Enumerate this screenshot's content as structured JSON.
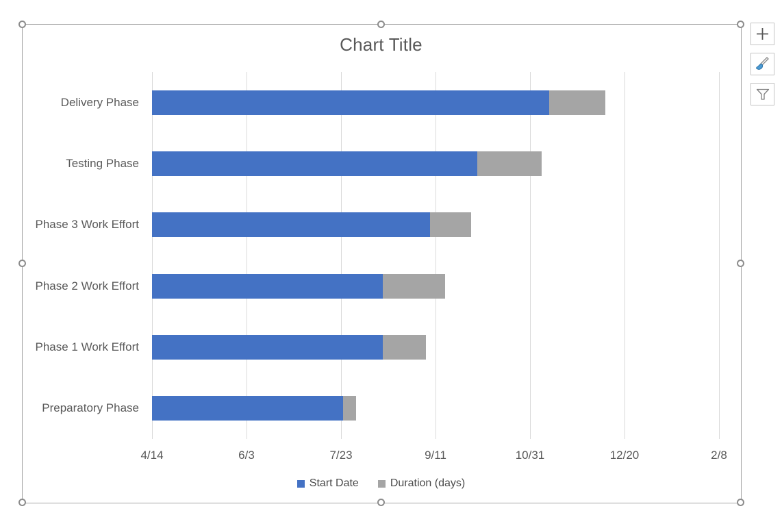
{
  "chart_title": "Chart Title",
  "chart_data": {
    "type": "bar",
    "subtype": "horizontal-stacked-gantt",
    "title": "Chart Title",
    "categories": [
      "Delivery Phase",
      "Testing Phase",
      "Phase 3 Work Effort",
      "Phase 2 Work Effort",
      "Phase 1 Work Effort",
      "Preparatory Phase"
    ],
    "series": [
      {
        "name": "Start Date",
        "color": "#4472C4",
        "role": "offset-from-axis-min",
        "values_days_from_axis_min": [
          210,
          172,
          147,
          122,
          122,
          101
        ],
        "start_date_estimates": [
          "11/10",
          "10/3",
          "9/8",
          "8/14",
          "8/14",
          "7/24"
        ]
      },
      {
        "name": "Duration (days)",
        "color": "#A5A5A5",
        "values": [
          30,
          34,
          22,
          33,
          23,
          7
        ]
      }
    ],
    "x_axis": {
      "tick_labels": [
        "4/14",
        "6/3",
        "7/23",
        "9/11",
        "10/31",
        "12/20",
        "2/8"
      ],
      "major_unit_days": 50,
      "min_label": "4/14",
      "max_label": "2/8"
    },
    "legend": {
      "position": "bottom",
      "items": [
        {
          "label": "Start Date",
          "color": "#4472C4"
        },
        {
          "label": "Duration (days)",
          "color": "#A5A5A5"
        }
      ]
    },
    "gridlines": {
      "vertical": true,
      "color": "#D9D9D9"
    }
  },
  "side_toolbar": {
    "buttons": [
      {
        "id": "chart-elements",
        "icon": "plus-icon"
      },
      {
        "id": "chart-styles",
        "icon": "paintbrush-icon"
      },
      {
        "id": "chart-filters",
        "icon": "funnel-icon"
      }
    ]
  },
  "colors": {
    "accent_blue": "#4472C4",
    "accent_gray": "#A5A5A5",
    "text": "#595959",
    "gridline": "#D9D9D9",
    "selection_frame": "#A3A3A3"
  }
}
